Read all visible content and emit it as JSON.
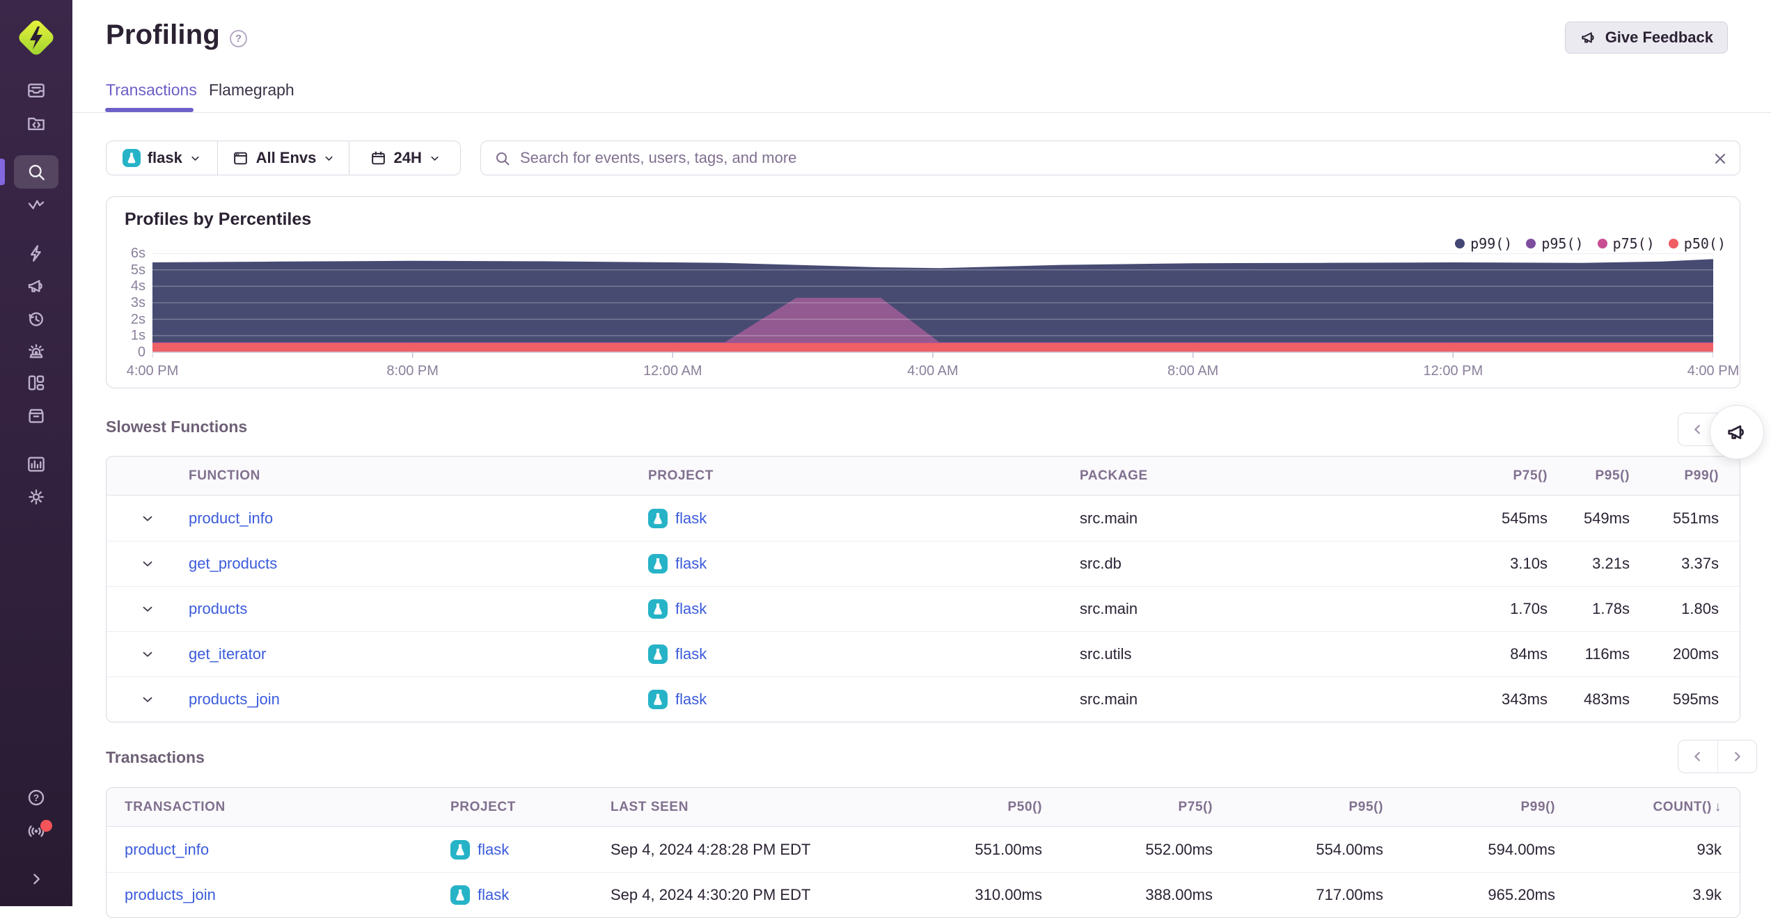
{
  "header": {
    "title": "Profiling",
    "feedback_label": "Give Feedback"
  },
  "tabs": [
    {
      "label": "Transactions",
      "active": true
    },
    {
      "label": "Flamegraph",
      "active": false
    }
  ],
  "filters": {
    "project_label": "flask",
    "env_label": "All Envs",
    "range_label": "24H"
  },
  "search": {
    "placeholder": "Search for events, users, tags, and more",
    "value": ""
  },
  "sidebar": {
    "icons": [
      "issues",
      "projects",
      "explore",
      "traces",
      "quick-start",
      "feedback",
      "replays",
      "alerts",
      "dashboards",
      "releases",
      "stats",
      "settings",
      "help",
      "whats-new",
      "collapse"
    ],
    "active_item": "explore",
    "badge_color": "#f55459"
  },
  "chart_data": {
    "type": "area",
    "title": "Profiles by Percentiles",
    "legend_position": "top-right",
    "grid": true,
    "ylim": [
      0,
      6
    ],
    "y_unit": "seconds",
    "y_ticks": [
      "0",
      "1s",
      "2s",
      "3s",
      "4s",
      "5s",
      "6s"
    ],
    "x_ticks": [
      "4:00 PM",
      "8:00 PM",
      "12:00 AM",
      "4:00 AM",
      "8:00 AM",
      "12:00 PM",
      "4:00 PM"
    ],
    "x_tick_hours": [
      0,
      4,
      8,
      12,
      16,
      20,
      24
    ],
    "x_unit": "hours after 4:00 PM (24H window)",
    "x_hours": [
      0,
      2,
      4,
      6,
      8,
      8.8,
      9.9,
      11.2,
      12.1,
      14,
      16,
      18,
      20,
      22,
      23.2,
      24
    ],
    "series": [
      {
        "name": "p99()",
        "color": "#444674",
        "area_color": "#474b72",
        "values": [
          5.45,
          5.5,
          5.55,
          5.52,
          5.45,
          5.42,
          5.3,
          5.15,
          5.1,
          5.3,
          5.4,
          5.42,
          5.45,
          5.42,
          5.5,
          5.65
        ]
      },
      {
        "name": "p95()",
        "color": "#7d4e9e",
        "area_color": "#935a91",
        "values": [
          0.6,
          0.6,
          0.6,
          0.6,
          0.6,
          0.6,
          3.3,
          3.3,
          0.6,
          0.6,
          0.6,
          0.6,
          0.6,
          0.6,
          0.6,
          0.6
        ]
      },
      {
        "name": "p75()",
        "color": "#c74d92",
        "area_color": "#c74d92",
        "values": [
          0.58,
          0.58,
          0.58,
          0.58,
          0.58,
          0.58,
          0.58,
          0.58,
          0.58,
          0.58,
          0.58,
          0.58,
          0.58,
          0.58,
          0.58,
          0.58
        ]
      },
      {
        "name": "p50()",
        "color": "#f05d63",
        "area_color": "#ef6166",
        "values": [
          0.55,
          0.55,
          0.55,
          0.55,
          0.55,
          0.55,
          0.55,
          0.55,
          0.55,
          0.55,
          0.55,
          0.55,
          0.55,
          0.55,
          0.55,
          0.55
        ]
      }
    ]
  },
  "slowest_functions": {
    "title": "Slowest Functions",
    "columns": [
      "FUNCTION",
      "PROJECT",
      "PACKAGE",
      "P75()",
      "P95()",
      "P99()"
    ],
    "rows": [
      {
        "function": "product_info",
        "project": "flask",
        "package": "src.main",
        "p75": "545ms",
        "p95": "549ms",
        "p99": "551ms"
      },
      {
        "function": "get_products",
        "project": "flask",
        "package": "src.db",
        "p75": "3.10s",
        "p95": "3.21s",
        "p99": "3.37s"
      },
      {
        "function": "products",
        "project": "flask",
        "package": "src.main",
        "p75": "1.70s",
        "p95": "1.78s",
        "p99": "1.80s"
      },
      {
        "function": "get_iterator",
        "project": "flask",
        "package": "src.utils",
        "p75": "84ms",
        "p95": "116ms",
        "p99": "200ms"
      },
      {
        "function": "products_join",
        "project": "flask",
        "package": "src.main",
        "p75": "343ms",
        "p95": "483ms",
        "p99": "595ms"
      }
    ]
  },
  "transactions": {
    "title": "Transactions",
    "columns": [
      "TRANSACTION",
      "PROJECT",
      "LAST SEEN",
      "P50()",
      "P75()",
      "P95()",
      "P99()",
      "COUNT()"
    ],
    "sort": {
      "column": "COUNT()",
      "direction": "desc"
    },
    "rows": [
      {
        "transaction": "product_info",
        "project": "flask",
        "last_seen": "Sep 4, 2024 4:28:28 PM EDT",
        "p50": "551.00ms",
        "p75": "552.00ms",
        "p95": "554.00ms",
        "p99": "594.00ms",
        "count": "93k"
      },
      {
        "transaction": "products_join",
        "project": "flask",
        "last_seen": "Sep 4, 2024 4:30:20 PM EDT",
        "p50": "310.00ms",
        "p75": "388.00ms",
        "p95": "717.00ms",
        "p99": "965.20ms",
        "count": "3.9k"
      }
    ]
  }
}
